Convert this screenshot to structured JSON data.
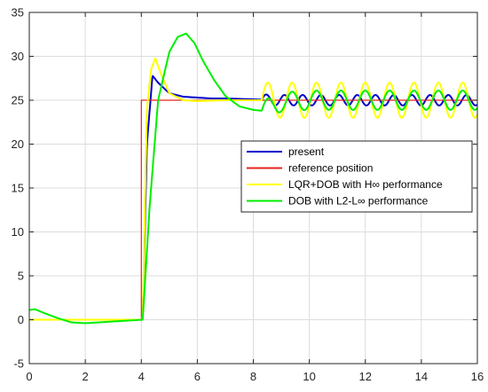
{
  "chart_data": {
    "type": "line",
    "title": "",
    "xlabel": "",
    "ylabel": "",
    "xlim": [
      0,
      16
    ],
    "ylim": [
      -5,
      35
    ],
    "xticks": [
      "0",
      "2",
      "4",
      "6",
      "8",
      "10",
      "12",
      "14",
      "16"
    ],
    "yticks": [
      "-5",
      "0",
      "5",
      "10",
      "15",
      "20",
      "25",
      "30",
      "35"
    ],
    "grid": true,
    "legend_position": "right",
    "series": [
      {
        "name": "present",
        "color": "#0000cc",
        "x": [
          0,
          4.05,
          4.2,
          4.4,
          4.6,
          5.0,
          5.5,
          6.0,
          6.5,
          7.0,
          8.0,
          9.0,
          10.0,
          11.0,
          12.0,
          13.0,
          14.0,
          15.0,
          16.0
        ],
        "y": [
          0,
          0,
          20.0,
          27.8,
          27.0,
          25.8,
          25.4,
          25.3,
          25.2,
          25.2,
          25.1,
          25.0,
          25.0,
          25.0,
          25.0,
          25.0,
          25.0,
          25.0,
          25.0
        ],
        "oscillation_start": 8.3,
        "oscillation_amplitude": 0.6,
        "oscillation_period": 0.65
      },
      {
        "name": "reference position",
        "color": "#e8231c",
        "x": [
          0,
          4,
          4,
          16
        ],
        "y": [
          0,
          0,
          25,
          25
        ]
      },
      {
        "name": "LQR+DOB with H∞ performance",
        "color": "#ffff00",
        "x": [
          0,
          4.05,
          4.2,
          4.35,
          4.5,
          4.7,
          5.0,
          5.5,
          6.0,
          7.0,
          8.0,
          9.0,
          10.0,
          11.0,
          12.0,
          13.0,
          14.0,
          15.0,
          16.0
        ],
        "y": [
          0,
          0,
          24.0,
          28.5,
          29.8,
          28.0,
          25.8,
          25.0,
          24.9,
          25.0,
          25.0,
          25.0,
          25.0,
          25.0,
          25.0,
          25.0,
          25.0,
          25.0,
          25.0
        ],
        "oscillation_start": 8.3,
        "oscillation_amplitude": 2.0,
        "oscillation_period": 0.87
      },
      {
        "name": "DOB with L2-L∞ performance",
        "color": "#00ee00",
        "x": [
          0,
          0.2,
          0.5,
          1.0,
          1.5,
          2.0,
          3.0,
          4.05,
          4.3,
          4.6,
          5.0,
          5.3,
          5.6,
          5.9,
          6.2,
          6.6,
          7.0,
          7.5,
          8.0,
          8.3,
          9.0,
          10.0,
          11.0,
          12.0,
          13.0,
          14.0,
          15.0,
          16.0
        ],
        "y": [
          1.1,
          1.2,
          0.8,
          0.2,
          -0.3,
          -0.4,
          -0.2,
          0,
          13.0,
          25.0,
          30.5,
          32.2,
          32.6,
          31.5,
          29.5,
          27.3,
          25.5,
          24.3,
          23.9,
          23.8,
          24.8,
          25.0,
          25.0,
          25.0,
          25.0,
          25.0,
          25.0,
          25.0
        ],
        "oscillation_start": 8.3,
        "oscillation_amplitude": 1.1,
        "oscillation_period": 0.87
      }
    ]
  }
}
